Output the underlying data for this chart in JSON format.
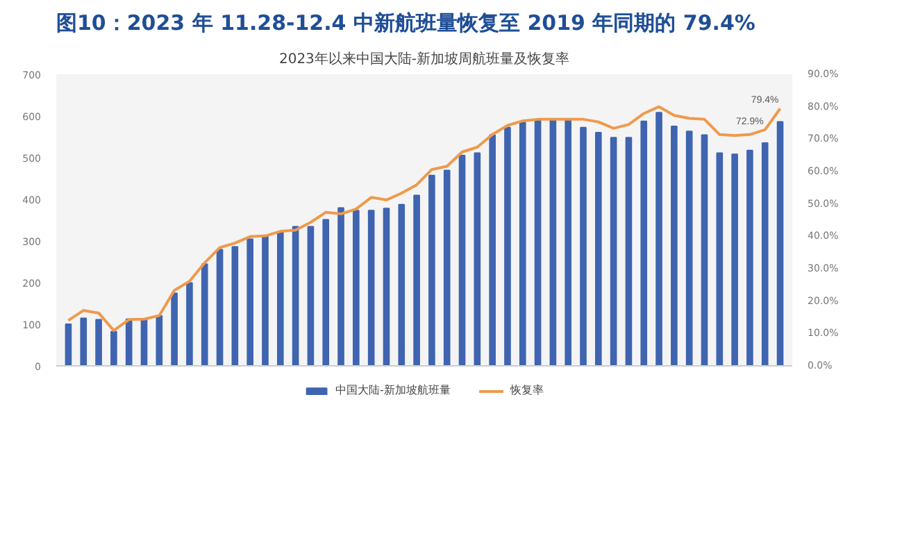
{
  "chart_data": {
    "type": "bar",
    "title": "图10：2023 年 11.28-12.4 中新航班量恢复至 2019 年同期的 79.4%",
    "subtitle": "2023年以来中国大陆-新加坡周航班量及恢复率",
    "categories": [
      null,
      null,
      null,
      null,
      null,
      null,
      null,
      null,
      null,
      null,
      null,
      null,
      null,
      null,
      null,
      null,
      null,
      null,
      null,
      null,
      null,
      null,
      null,
      null,
      null,
      null,
      null,
      null,
      null,
      null,
      null,
      null,
      null,
      null,
      null,
      null,
      null,
      null,
      null,
      null,
      null,
      null,
      null,
      null,
      null,
      null,
      null,
      null
    ],
    "series": [
      {
        "name": "中国大陆-新加坡航班量",
        "color": "#3f64b0",
        "values": [
          100,
          114,
          111,
          82,
          112,
          112,
          120,
          174,
          199,
          244,
          279,
          286,
          304,
          313,
          322,
          334,
          334,
          351,
          379,
          373,
          373,
          378,
          387,
          409,
          457,
          469,
          505,
          511,
          554,
          572,
          584,
          590,
          590,
          590,
          572,
          560,
          548,
          548,
          587,
          608,
          575,
          563,
          554,
          511,
          508,
          517,
          535,
          586
        ]
      },
      {
        "name": "恢复率",
        "type": "line",
        "axis": "y2",
        "color": "#ed9a4d",
        "values": [
          14.0,
          17.1,
          16.3,
          10.9,
          14.3,
          14.4,
          15.5,
          23.3,
          26.1,
          31.8,
          36.5,
          37.9,
          39.9,
          40.1,
          41.5,
          41.9,
          44.3,
          47.4,
          46.9,
          48.4,
          52.0,
          51.2,
          53.3,
          55.9,
          60.6,
          61.6,
          66.0,
          67.5,
          71.4,
          74.2,
          75.6,
          76.1,
          76.1,
          76.1,
          76.1,
          75.3,
          73.3,
          74.5,
          77.9,
          80.0,
          77.3,
          76.4,
          76.1,
          71.4,
          71.1,
          71.4,
          72.9,
          79.4
        ],
        "value_labels": [
          null,
          null,
          null,
          null,
          null,
          null,
          null,
          null,
          null,
          null,
          null,
          null,
          null,
          null,
          null,
          null,
          null,
          null,
          null,
          null,
          null,
          null,
          null,
          null,
          null,
          null,
          null,
          null,
          null,
          null,
          null,
          null,
          null,
          null,
          null,
          null,
          null,
          null,
          null,
          null,
          null,
          null,
          null,
          null,
          null,
          null,
          "72.9%",
          "79.4%"
        ]
      }
    ],
    "ylim": [
      0,
      700
    ],
    "yticks": [
      0,
      100,
      200,
      300,
      400,
      500,
      600,
      700
    ],
    "y2lim": [
      0,
      90
    ],
    "y2ticks": [
      {
        "value": 0,
        "label": "0.0%"
      },
      {
        "value": 10,
        "label": "10.0%"
      },
      {
        "value": 20,
        "label": "20.0%"
      },
      {
        "value": 30,
        "label": "30.0%"
      },
      {
        "value": 40,
        "label": "40.0%"
      },
      {
        "value": 50,
        "label": "50.0%"
      },
      {
        "value": 60,
        "label": "60.0%"
      },
      {
        "value": 70,
        "label": "70.0%"
      },
      {
        "value": 80,
        "label": "80.0%"
      },
      {
        "value": 90,
        "label": "90.0%"
      }
    ],
    "grid": false,
    "legend": "bottom",
    "marker": "none",
    "line_style": "solid"
  }
}
